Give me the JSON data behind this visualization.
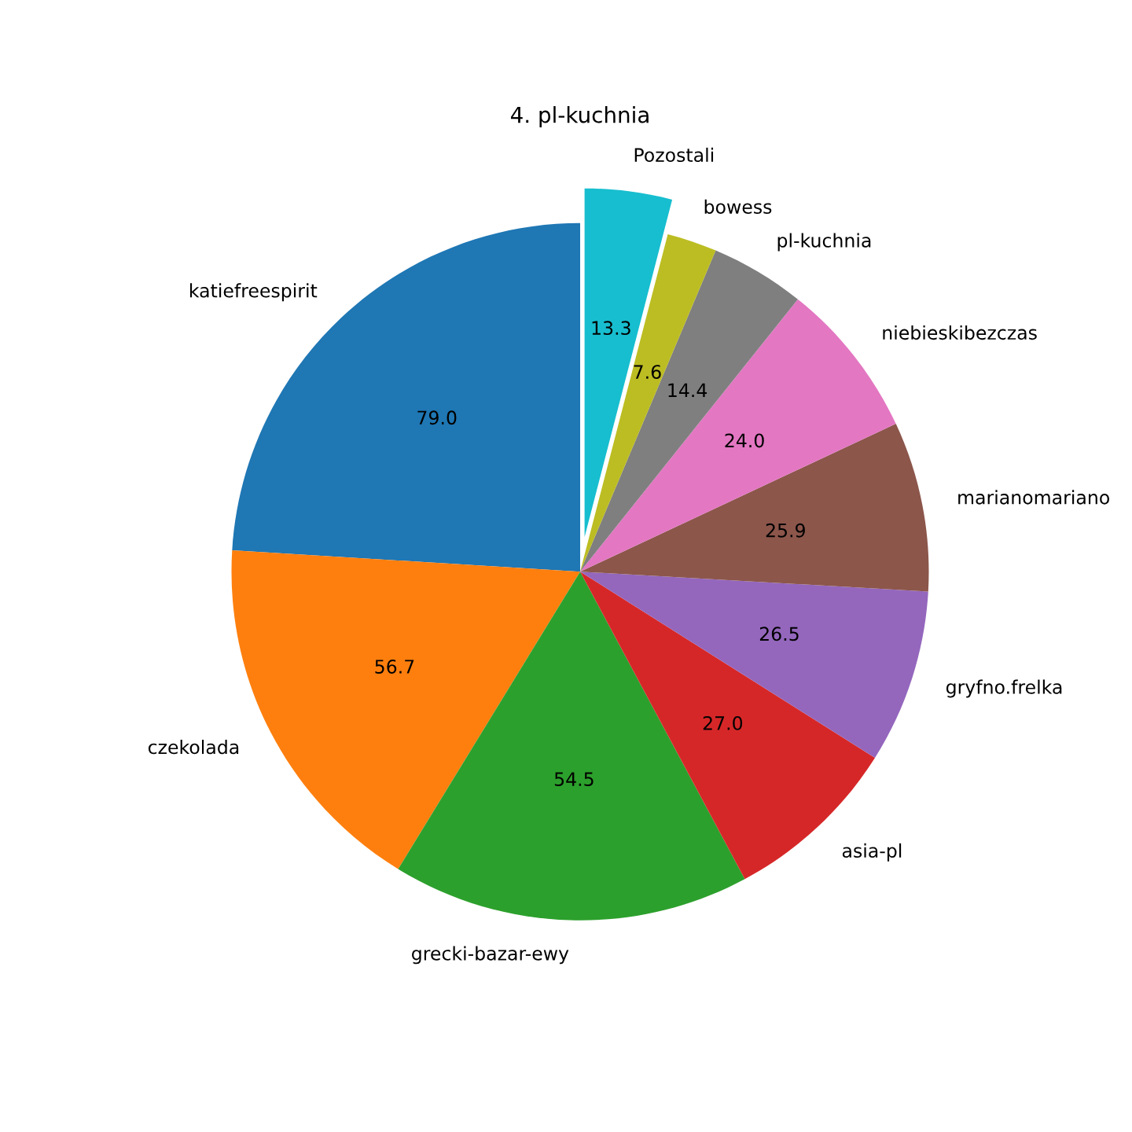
{
  "chart_data": {
    "type": "pie",
    "title": "4. pl-kuchnia",
    "categories": [
      "katiefreespirit",
      "czekolada",
      "grecki-bazar-ewy",
      "asia-pl",
      "gryfno.frelka",
      "marianomariano",
      "niebieskibezczas",
      "pl-kuchnia",
      "bowess",
      "Pozostali"
    ],
    "values": [
      79.0,
      56.7,
      54.5,
      27.0,
      26.5,
      25.9,
      24.0,
      14.4,
      7.6,
      13.3
    ],
    "colors": [
      "#1f77b4",
      "#ff7f0e",
      "#2ca02c",
      "#d62728",
      "#9467bd",
      "#8c564b",
      "#e377c2",
      "#7f7f7f",
      "#bcbd22",
      "#17becf"
    ],
    "value_labels": [
      "79.0",
      "56.7",
      "54.5",
      "27.0",
      "26.5",
      "25.9",
      "24.0",
      "14.4",
      "7.6",
      "13.3"
    ]
  }
}
